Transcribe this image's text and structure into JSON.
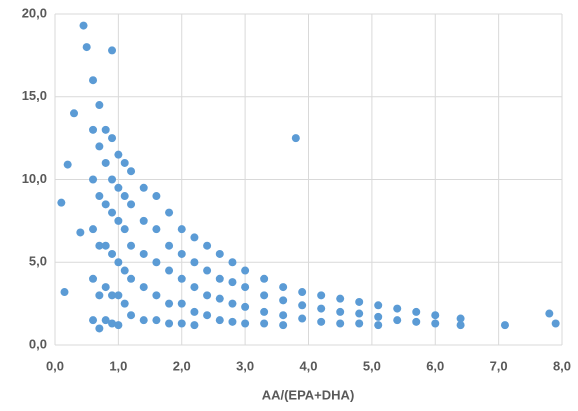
{
  "chart_data": {
    "type": "scatter",
    "x_label": "AA/(EPA+DHA)",
    "color": "#5b9bd5",
    "grid": true,
    "xlim": [
      0,
      8
    ],
    "ylim": [
      0,
      20
    ],
    "xticks": [
      {
        "value": 0,
        "label": "0,0"
      },
      {
        "value": 1,
        "label": "1,0"
      },
      {
        "value": 2,
        "label": "2,0"
      },
      {
        "value": 3,
        "label": "3,0"
      },
      {
        "value": 4,
        "label": "4,0"
      },
      {
        "value": 5,
        "label": "5,0"
      },
      {
        "value": 6,
        "label": "6,0"
      },
      {
        "value": 7,
        "label": "7,0"
      },
      {
        "value": 8,
        "label": "8,0"
      }
    ],
    "yticks": [
      {
        "value": 0,
        "label": "0,0"
      },
      {
        "value": 5,
        "label": "5,0"
      },
      {
        "value": 10,
        "label": "10,0"
      },
      {
        "value": 15,
        "label": "15,0"
      },
      {
        "value": 20,
        "label": "20,0"
      }
    ],
    "x": [
      0.6,
      0.6,
      0.6,
      0.6,
      0.6,
      0.6,
      0.7,
      0.7,
      0.7,
      0.7,
      0.7,
      0.7,
      0.8,
      0.8,
      0.8,
      0.8,
      0.8,
      0.8,
      0.9,
      0.9,
      0.9,
      0.9,
      0.9,
      0.9,
      1.0,
      1.0,
      1.0,
      1.0,
      1.0,
      1.0,
      1.1,
      1.1,
      1.1,
      1.1,
      1.1,
      1.2,
      1.2,
      1.2,
      1.2,
      1.2,
      1.4,
      1.4,
      1.4,
      1.4,
      1.4,
      1.6,
      1.6,
      1.6,
      1.6,
      1.6,
      1.8,
      1.8,
      1.8,
      1.8,
      1.8,
      2.0,
      2.0,
      2.0,
      2.0,
      2.0,
      2.2,
      2.2,
      2.2,
      2.2,
      2.2,
      2.4,
      2.4,
      2.4,
      2.4,
      2.6,
      2.6,
      2.6,
      2.6,
      2.8,
      2.8,
      2.8,
      2.8,
      3.0,
      3.0,
      3.0,
      3.0,
      3.3,
      3.3,
      3.3,
      3.3,
      3.6,
      3.6,
      3.6,
      3.6,
      3.9,
      3.9,
      3.9,
      4.2,
      4.2,
      4.2,
      4.5,
      4.5,
      4.5,
      4.8,
      4.8,
      4.8,
      5.1,
      5.1,
      5.1,
      5.4,
      5.4,
      5.7,
      5.7,
      6.0,
      6.0,
      6.4,
      6.4,
      0.45,
      0.5,
      0.9,
      0.1,
      0.2,
      0.15,
      3.8,
      7.8,
      7.9,
      7.1,
      0.3,
      0.4
    ],
    "values": [
      16,
      13,
      10,
      7,
      4,
      1.5,
      14.5,
      12,
      9,
      6,
      3,
      1,
      13,
      11,
      8.5,
      6,
      3.5,
      1.5,
      12.5,
      10,
      8,
      5.5,
      3,
      1.3,
      11.5,
      9.5,
      7.5,
      5,
      3,
      1.2,
      11,
      9,
      7,
      4.5,
      2.5,
      10.5,
      8.5,
      6,
      4,
      1.8,
      9.5,
      7.5,
      5.5,
      3.5,
      1.5,
      9,
      7,
      5,
      3,
      1.5,
      8,
      6,
      4.5,
      2.5,
      1.3,
      7,
      5.5,
      4,
      2.5,
      1.3,
      6.5,
      5,
      3.5,
      2,
      1.2,
      6,
      4.5,
      3,
      1.8,
      5.5,
      4,
      2.8,
      1.5,
      5,
      3.8,
      2.5,
      1.4,
      4.5,
      3.5,
      2.3,
      1.3,
      4,
      3,
      2,
      1.3,
      3.5,
      2.7,
      1.8,
      1.2,
      3.2,
      2.4,
      1.6,
      3,
      2.2,
      1.4,
      2.8,
      2,
      1.3,
      2.6,
      1.9,
      1.3,
      2.4,
      1.7,
      1.2,
      2.2,
      1.5,
      2,
      1.4,
      1.8,
      1.3,
      1.6,
      1.2,
      19.3,
      18,
      17.8,
      8.6,
      10.9,
      3.2,
      12.5,
      1.9,
      1.3,
      1.2,
      14,
      6.8
    ]
  }
}
